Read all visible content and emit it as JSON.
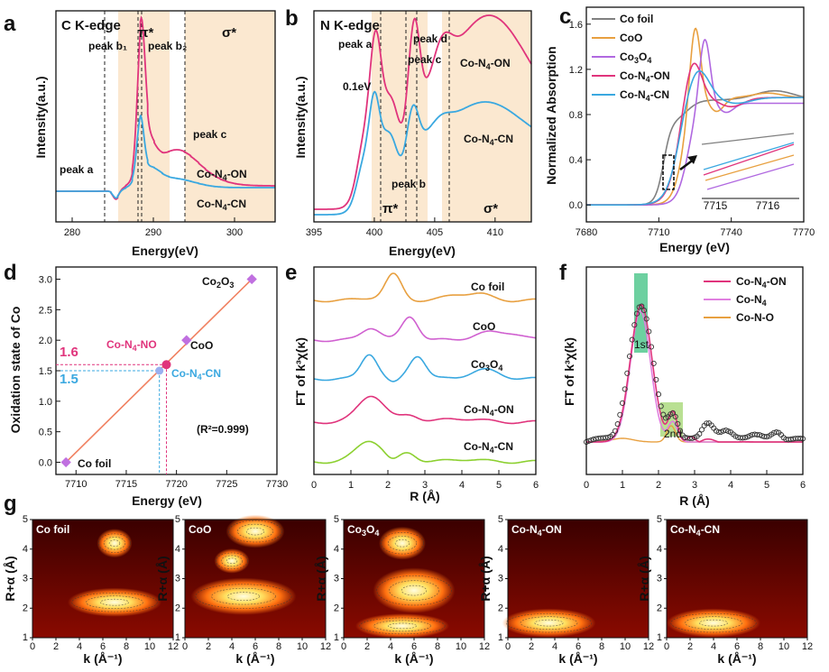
{
  "colors": {
    "on": "#e0347c",
    "cn": "#3aa8e0",
    "cofoil": "#808080",
    "coo": "#e8a040",
    "co3o4": "#b068e0",
    "cn_green": "#8cd030",
    "shade": "#fbe8d0",
    "orange_line": "#f08060"
  },
  "chart_data": [
    {
      "panel": "a",
      "type": "line",
      "title": "C K-edge",
      "xlabel": "Energy(eV)",
      "ylabel": "Intensity(a.u.)",
      "xlim": [
        278,
        305
      ],
      "xticks": [
        "280",
        "290",
        "300"
      ],
      "regions": [
        {
          "label": "π*",
          "from": 285,
          "to": 292
        },
        {
          "label": "σ*",
          "from": 294.5,
          "to": 305
        }
      ],
      "annotations": [
        "peak a",
        "peak b₁",
        "peak b₂",
        "peak c"
      ],
      "series": [
        {
          "name": "Co-N₄-ON"
        },
        {
          "name": "Co-N₄-CN"
        }
      ],
      "series_labels": [
        "Co-N",
        "4",
        "-ON",
        "Co-N",
        "4",
        "-CN"
      ]
    },
    {
      "panel": "b",
      "type": "line",
      "title": "N K-edge",
      "xlabel": "Energy(eV)",
      "ylabel": "Intensity(a.u.)",
      "xlim": [
        395,
        413
      ],
      "xticks": [
        "395",
        "400",
        "405",
        "410"
      ],
      "regions": [
        {
          "label": "π*",
          "from": 398.5,
          "to": 404
        },
        {
          "label": "σ*",
          "from": 404.5,
          "to": 413
        }
      ],
      "annotations": [
        "peak a",
        "peak b",
        "peak c",
        "peak d",
        "0.1eV"
      ],
      "series_labels": [
        "Co-N",
        "4",
        "-ON",
        "Co-N",
        "4",
        "-CN"
      ]
    },
    {
      "panel": "c",
      "type": "line",
      "xlabel": "Energy (eV)",
      "ylabel": "Normalized Absorption",
      "xlim": [
        7680,
        7770
      ],
      "ylim": [
        0,
        1.7
      ],
      "xticks": [
        "7680",
        "7710",
        "7740",
        "7770"
      ],
      "yticks": [
        "0.0",
        "0.4",
        "0.8",
        "1.2",
        "1.6"
      ],
      "legend": [
        "Co foil",
        "CoO",
        "Co₃O₄",
        "Co-N₄-ON",
        "Co-N₄-CN"
      ],
      "legend_text": [
        "Co foil",
        "CoO",
        "Co",
        "3",
        "O",
        "4",
        "Co-N",
        "4",
        "-ON",
        "Co-N",
        "4",
        "-CN"
      ],
      "inset_xticks": [
        "7715",
        "7716"
      ]
    },
    {
      "panel": "d",
      "type": "scatter",
      "xlabel": "Energy (eV)",
      "ylabel": "Oxidation state of Co",
      "xlim": [
        7708,
        7730
      ],
      "ylim": [
        -0.2,
        3.2
      ],
      "xticks": [
        "7710",
        "7715",
        "7720",
        "7725",
        "7730"
      ],
      "yticks": [
        "0.0",
        "0.5",
        "1.0",
        "1.5",
        "2.0",
        "2.5",
        "3.0"
      ],
      "points": [
        {
          "name": "Co foil",
          "x": 7709,
          "y": 0
        },
        {
          "name": "CoO",
          "x": 7721,
          "y": 2
        },
        {
          "name": "Co₂O₃",
          "x": 7727.5,
          "y": 3
        },
        {
          "name": "Co-N₄-CN",
          "x": 7718.3,
          "y": 1.5
        },
        {
          "name": "Co-N₄-NO",
          "x": 7719,
          "y": 1.6
        }
      ],
      "fit_text": "(R²=0.999)",
      "labels": {
        "cofoil": "Co foil",
        "coo": "CoO",
        "co2o3_a": "Co",
        "co2o3_b": "2",
        "co2o3_c": "O",
        "co2o3_d": "3",
        "no_a": "Co-N",
        "no_b": "4",
        "no_c": "-NO",
        "cn_a": "Co-N",
        "cn_b": "4",
        "cn_c": "-CN",
        "v16": "1.6",
        "v15": "1.5"
      }
    },
    {
      "panel": "e",
      "type": "line",
      "xlabel": "R (Å)",
      "ylabel": "FT of k³χ(κ)",
      "xlim": [
        0,
        6
      ],
      "xticks": [
        "0",
        "1",
        "2",
        "3",
        "4",
        "5",
        "6"
      ],
      "series": [
        {
          "name": "Co foil"
        },
        {
          "name": "CoO"
        },
        {
          "name": "Co₃O₄"
        },
        {
          "name": "Co-N₄-ON"
        },
        {
          "name": "Co-N₄-CN"
        }
      ],
      "series_text": [
        "Co foil",
        "CoO",
        "Co",
        "3",
        "O",
        "4",
        "Co-N",
        "4",
        "-ON",
        "Co-N",
        "4",
        "-CN"
      ]
    },
    {
      "panel": "f",
      "type": "line",
      "xlabel": "R (Å)",
      "ylabel": "FT of k³χ(k)",
      "xlim": [
        0,
        6
      ],
      "xticks": [
        "0",
        "1",
        "2",
        "3",
        "4",
        "5",
        "6"
      ],
      "legend": [
        "Co-N₄-ON",
        "Co-N₄",
        "Co-N-O"
      ],
      "legend_text": [
        "Co-N",
        "4",
        "-ON",
        "Co-N",
        "4",
        "Co-N-O"
      ],
      "shells": [
        "1st",
        "2nd"
      ]
    },
    {
      "panel": "g",
      "type": "heatmap",
      "xlabel": "k (Å⁻¹)",
      "ylabel": "R+α (Å)",
      "xticks": [
        "0",
        "2",
        "4",
        "6",
        "8",
        "10",
        "12"
      ],
      "yticks": [
        "1",
        "2",
        "3",
        "4",
        "5"
      ],
      "maps": [
        {
          "title": "Co foil",
          "hot": [
            {
              "k": 7,
              "r": 2.2,
              "w": 4,
              "h": 0.35
            },
            {
              "k": 7,
              "r": 4.2,
              "w": 1.5,
              "h": 0.35
            }
          ]
        },
        {
          "title": "CoO",
          "hot": [
            {
              "k": 5,
              "r": 2.4,
              "w": 4.5,
              "h": 0.45
            },
            {
              "k": 6,
              "r": 4.6,
              "w": 2.5,
              "h": 0.4
            },
            {
              "k": 4,
              "r": 3.6,
              "w": 1.5,
              "h": 0.3
            }
          ]
        },
        {
          "title": "Co₃O₄",
          "hot": [
            {
              "k": 6,
              "r": 2.6,
              "w": 3.5,
              "h": 0.55
            },
            {
              "k": 5,
              "r": 1.4,
              "w": 4,
              "h": 0.3
            },
            {
              "k": 5,
              "r": 4.2,
              "w": 2,
              "h": 0.4
            }
          ]
        },
        {
          "title": "Co-N₄-ON",
          "hot": [
            {
              "k": 3.5,
              "r": 1.5,
              "w": 4,
              "h": 0.35
            }
          ]
        },
        {
          "title": "Co-N₄-CN",
          "hot": [
            {
              "k": 4,
              "r": 1.5,
              "w": 4,
              "h": 0.35
            }
          ]
        }
      ],
      "titles_text": [
        "Co foil",
        "CoO",
        "Co",
        "3",
        "O",
        "4",
        "Co-N",
        "4",
        "-ON",
        "Co-N",
        "4",
        "-CN"
      ]
    }
  ],
  "panel_labels": [
    "a",
    "b",
    "c",
    "d",
    "e",
    "f",
    "g"
  ]
}
